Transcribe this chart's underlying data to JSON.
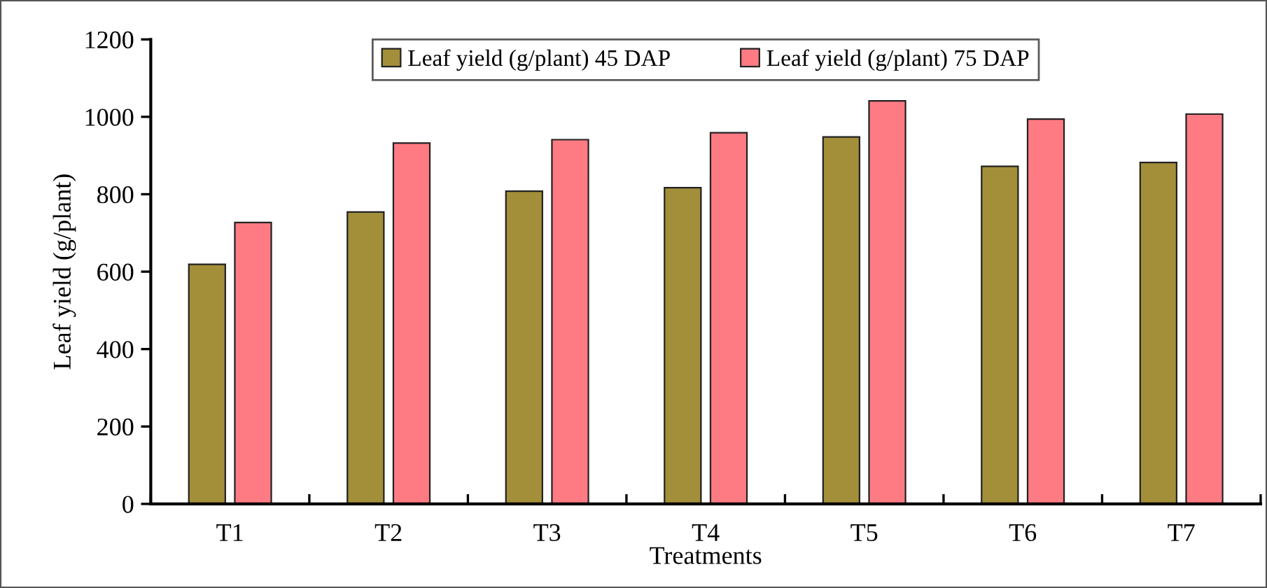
{
  "chart_data": {
    "type": "bar",
    "xlabel": "Treatments",
    "ylabel": "Leaf yield (g/plant)",
    "categories": [
      "T1",
      "T2",
      "T3",
      "T4",
      "T5",
      "T6",
      "T7"
    ],
    "series": [
      {
        "name": "Leaf yield (g/plant) 45 DAP",
        "color": "#a38f3a",
        "values": [
          619,
          754,
          808,
          817,
          948,
          872,
          882
        ]
      },
      {
        "name": "Leaf yield (g/plant) 75 DAP",
        "color": "#ff7b84",
        "values": [
          727,
          932,
          941,
          959,
          1041,
          994,
          1007
        ]
      }
    ],
    "ylim": [
      0,
      1200
    ],
    "yticks": [
      0,
      200,
      400,
      600,
      800,
      1000,
      1200
    ],
    "grid": false,
    "legend": "top"
  }
}
